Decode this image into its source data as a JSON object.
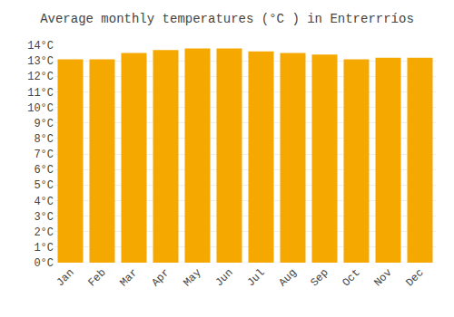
{
  "chart_data": {
    "type": "bar",
    "title": "Average monthly temperatures (°C ) in Entrerrríos",
    "categories": [
      "Jan",
      "Feb",
      "Mar",
      "Apr",
      "May",
      "Jun",
      "Jul",
      "Aug",
      "Sep",
      "Oct",
      "Nov",
      "Dec"
    ],
    "values": [
      13.1,
      13.1,
      13.5,
      13.7,
      13.8,
      13.8,
      13.6,
      13.5,
      13.4,
      13.1,
      13.2,
      13.2
    ],
    "color": "#F5A800",
    "ylim": [
      0,
      14
    ],
    "yticks": [
      {
        "value": 0,
        "label": "0°C"
      },
      {
        "value": 1,
        "label": "1°C"
      },
      {
        "value": 2,
        "label": "2°C"
      },
      {
        "value": 3,
        "label": "3°C"
      },
      {
        "value": 4,
        "label": "4°C"
      },
      {
        "value": 5,
        "label": "5°C"
      },
      {
        "value": 6,
        "label": "6°C"
      },
      {
        "value": 7,
        "label": "7°C"
      },
      {
        "value": 8,
        "label": "8°C"
      },
      {
        "value": 9,
        "label": "9°C"
      },
      {
        "value": 10,
        "label": "10°C"
      },
      {
        "value": 11,
        "label": "11°C"
      },
      {
        "value": 12,
        "label": "12°C"
      },
      {
        "value": 13,
        "label": "13°C"
      },
      {
        "value": 14,
        "label": "14°C"
      }
    ],
    "grid": true
  }
}
